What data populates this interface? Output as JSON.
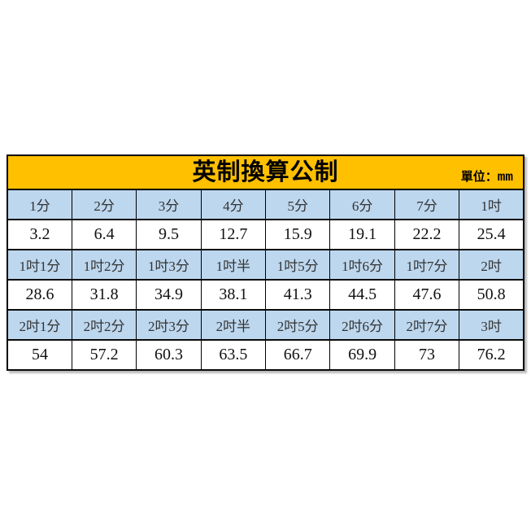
{
  "page": {
    "background": "#ffffff"
  },
  "table": {
    "title": "英制換算公制",
    "unit_label": "單位：",
    "unit_value": "mm",
    "colors": {
      "header_bg": "#FFC000",
      "label_row_bg": "#BDD7EE",
      "value_row_bg": "#FFFFFF",
      "border": "#000000",
      "text": "#000000"
    },
    "rows": [
      {
        "type": "label",
        "cells": [
          "1分",
          "2分",
          "3分",
          "4分",
          "5分",
          "6分",
          "7分",
          "1吋"
        ]
      },
      {
        "type": "value",
        "cells": [
          "3.2",
          "6.4",
          "9.5",
          "12.7",
          "15.9",
          "19.1",
          "22.2",
          "25.4"
        ]
      },
      {
        "type": "label",
        "cells": [
          "1吋1分",
          "1吋2分",
          "1吋3分",
          "1吋半",
          "1吋5分",
          "1吋6分",
          "1吋7分",
          "2吋"
        ]
      },
      {
        "type": "value",
        "cells": [
          "28.6",
          "31.8",
          "34.9",
          "38.1",
          "41.3",
          "44.5",
          "47.6",
          "50.8"
        ]
      },
      {
        "type": "label",
        "cells": [
          "2吋1分",
          "2吋2分",
          "2吋3分",
          "2吋半",
          "2吋5分",
          "2吋6分",
          "2吋7分",
          "3吋"
        ]
      },
      {
        "type": "value",
        "cells": [
          "54",
          "57.2",
          "60.3",
          "63.5",
          "66.7",
          "69.9",
          "73",
          "76.2"
        ]
      }
    ]
  },
  "chart_data": {
    "type": "table",
    "title": "英制換算公制",
    "unit": "mm",
    "legend_position": "none",
    "series": [
      {
        "labels": [
          "1分",
          "2分",
          "3分",
          "4分",
          "5分",
          "6分",
          "7分",
          "1吋"
        ],
        "values_mm": [
          3.2,
          6.4,
          9.5,
          12.7,
          15.9,
          19.1,
          22.2,
          25.4
        ]
      },
      {
        "labels": [
          "1吋1分",
          "1吋2分",
          "1吋3分",
          "1吋半",
          "1吋5分",
          "1吋6分",
          "1吋7分",
          "2吋"
        ],
        "values_mm": [
          28.6,
          31.8,
          34.9,
          38.1,
          41.3,
          44.5,
          47.6,
          50.8
        ]
      },
      {
        "labels": [
          "2吋1分",
          "2吋2分",
          "2吋3分",
          "2吋半",
          "2吋5分",
          "2吋6分",
          "2吋7分",
          "3吋"
        ],
        "values_mm": [
          54,
          57.2,
          60.3,
          63.5,
          66.7,
          69.9,
          73,
          76.2
        ]
      }
    ]
  }
}
